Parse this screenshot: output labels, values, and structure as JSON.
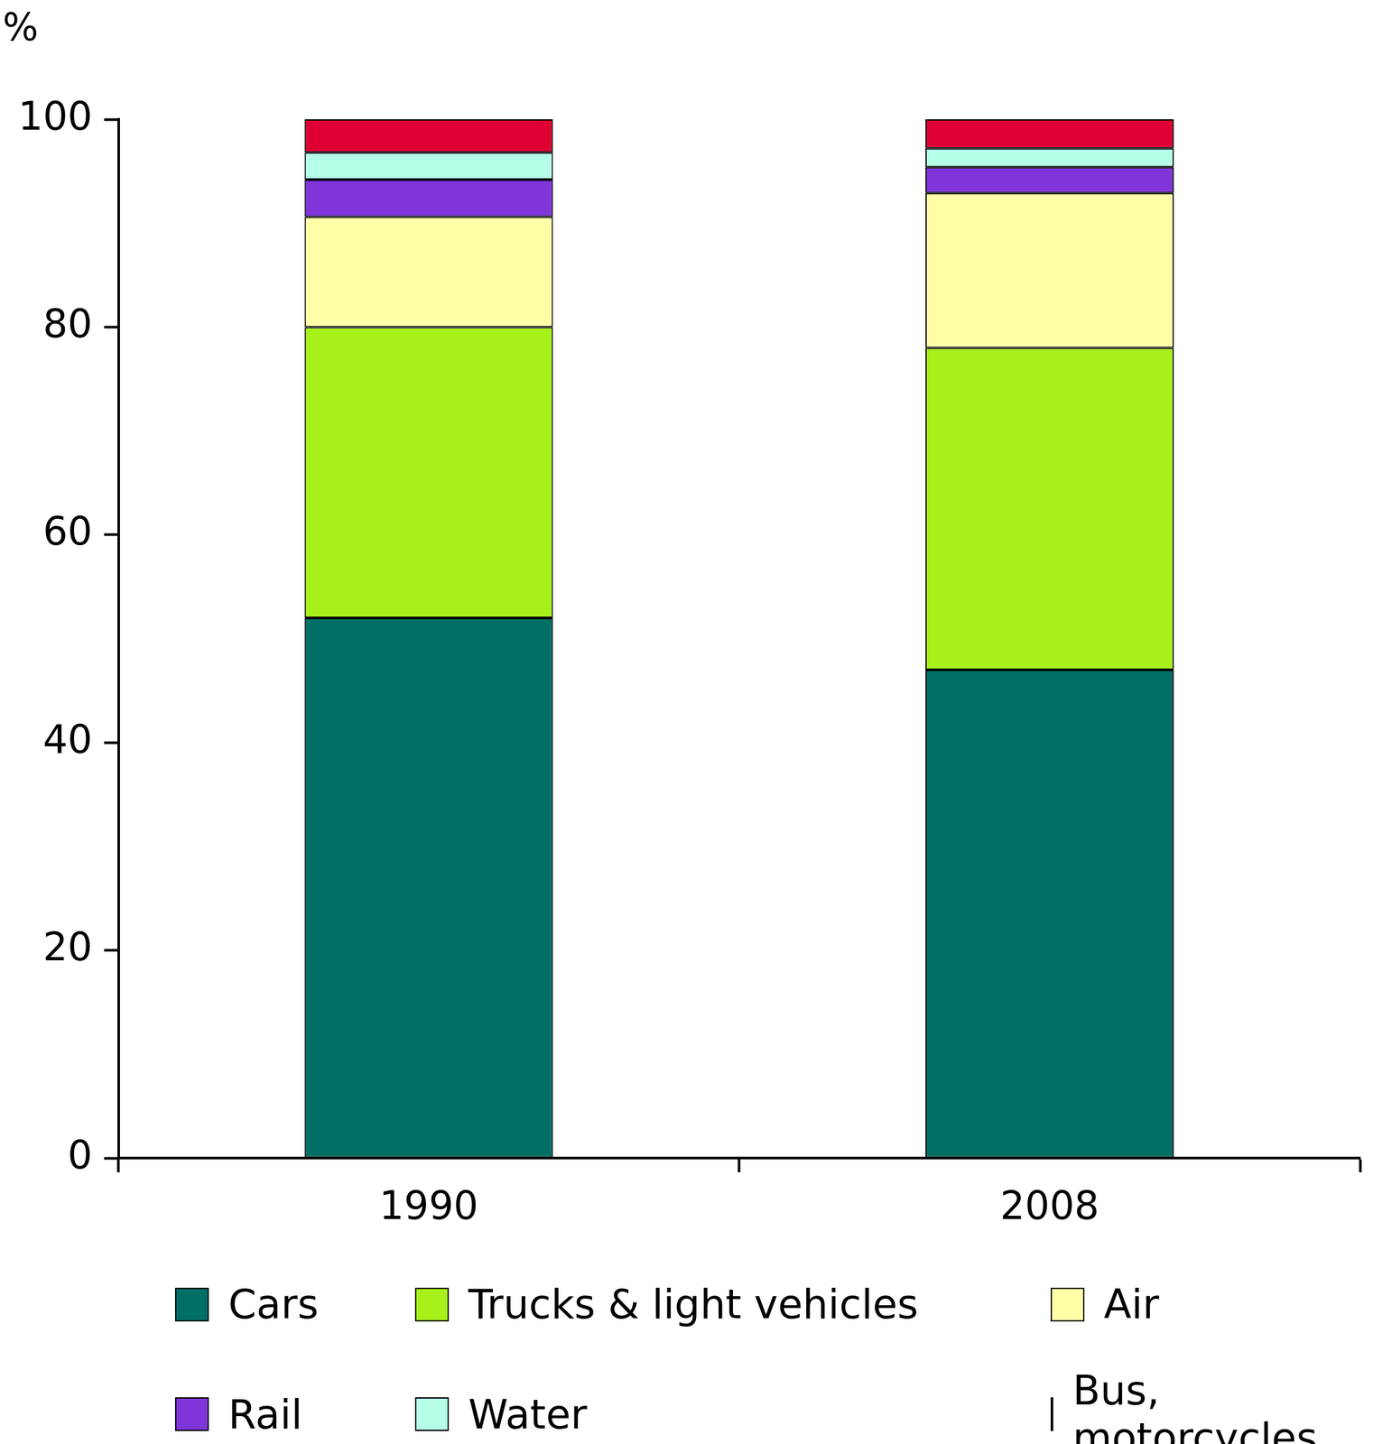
{
  "chart_data": {
    "type": "bar",
    "ylabel": "%",
    "categories": [
      "1990",
      "2008"
    ],
    "series": [
      {
        "name": "Cars",
        "color": "#006f66",
        "values": [
          52,
          47
        ]
      },
      {
        "name": "Trucks & light vehicles",
        "color": "#a8f01a",
        "values": [
          28,
          31
        ]
      },
      {
        "name": "Air",
        "color": "#ffffa8",
        "values": [
          10.6,
          14.9
        ]
      },
      {
        "name": "Rail",
        "color": "#7f35d9",
        "values": [
          3.6,
          2.5
        ]
      },
      {
        "name": "Water",
        "color": "#b5ffe8",
        "values": [
          2.6,
          1.8
        ]
      },
      {
        "name": "Bus, motorcycles",
        "color": "#de0032",
        "values": [
          3.2,
          2.8
        ]
      }
    ],
    "stacked": true,
    "ylim": [
      0,
      100
    ],
    "yticks": [
      0,
      20,
      40,
      60,
      80,
      100
    ],
    "grid": false,
    "legend": "bottom"
  }
}
